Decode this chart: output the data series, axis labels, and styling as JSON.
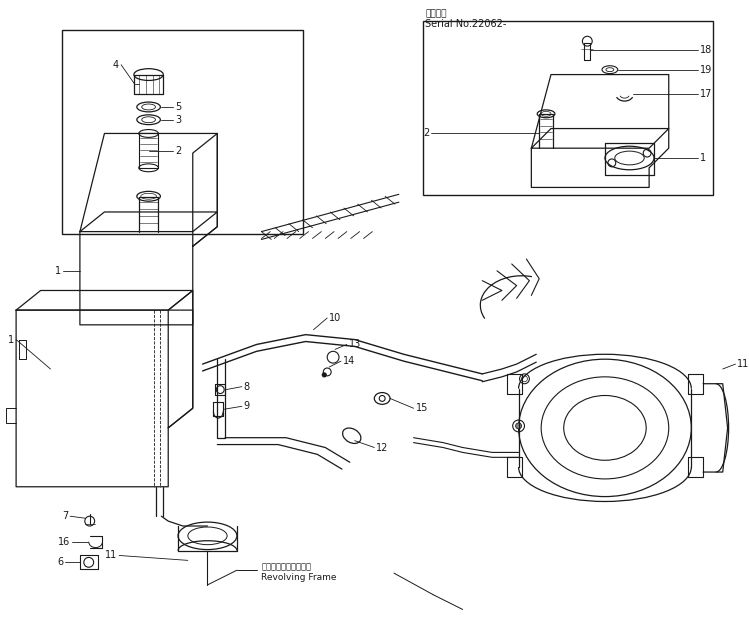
{
  "bg_color": "#ffffff",
  "line_color": "#1a1a1a",
  "fig_width": 7.49,
  "fig_height": 6.32,
  "dpi": 100,
  "header_jp": "適用号機",
  "header_serial": "Serial No.22062-",
  "revolving_jp": "レボルビングフレーム",
  "revolving_en": "Revolving Frame"
}
